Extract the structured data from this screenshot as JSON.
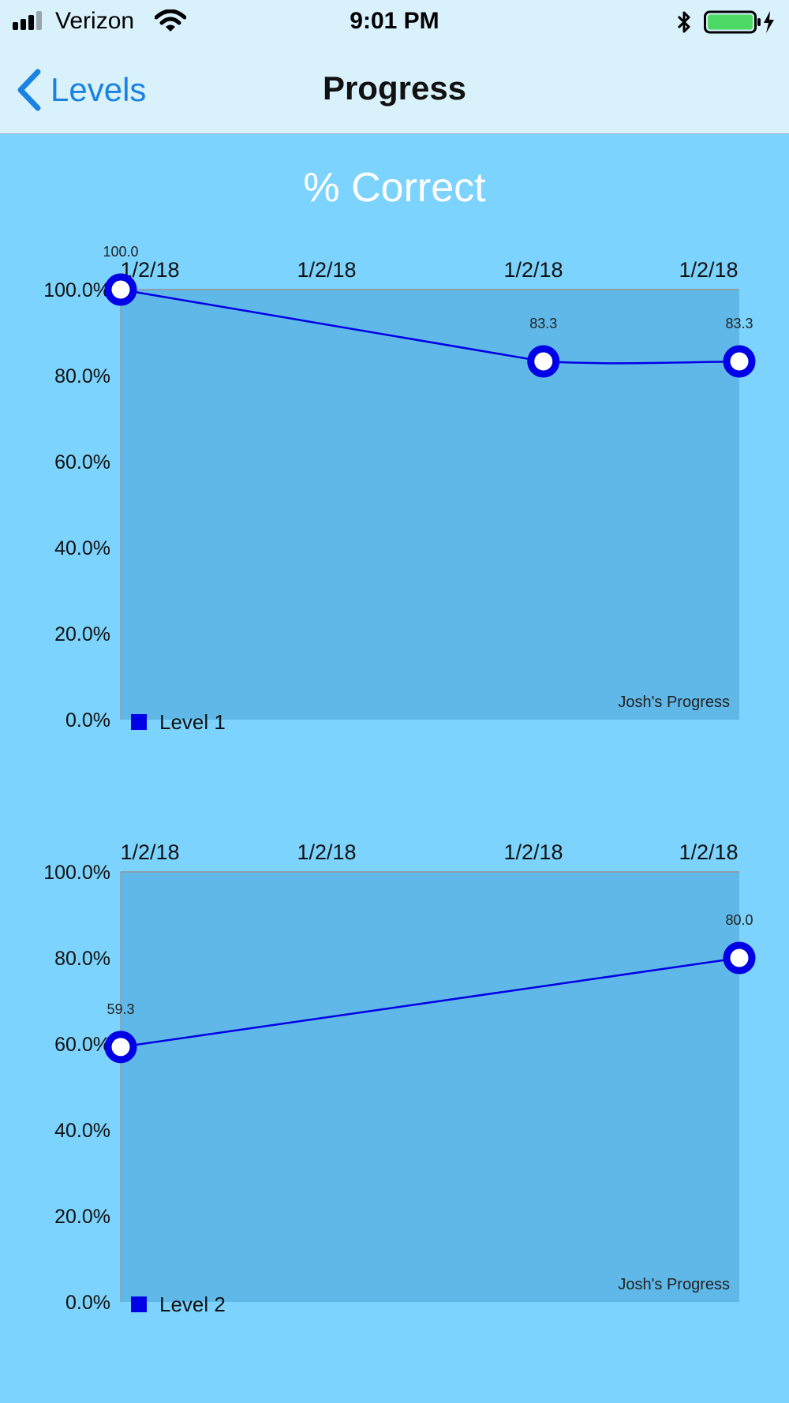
{
  "status_bar": {
    "carrier": "Verizon",
    "time": "9:01 PM",
    "icons": [
      "signal-icon",
      "wifi-icon",
      "bluetooth-icon",
      "battery-icon",
      "charging-icon"
    ]
  },
  "nav": {
    "back_label": "Levels",
    "title": "Progress"
  },
  "page": {
    "title": "% Correct"
  },
  "colors": {
    "background": "#7cd3fd",
    "plot_area": "#5fb8e8",
    "series": "#0000e6",
    "nav_bg": "#d9f1fb",
    "back_link": "#1a82e0"
  },
  "chart_data": [
    {
      "type": "line",
      "x_tick_labels": [
        "1/2/18",
        "1/2/18",
        "1/2/18",
        "1/2/18"
      ],
      "y_tick_labels": [
        "100.0%",
        "80.0%",
        "60.0%",
        "40.0%",
        "20.0%",
        "0.0%"
      ],
      "ylim": [
        0,
        100
      ],
      "xlim": [
        0,
        3
      ],
      "series": [
        {
          "name": "Level 1",
          "x": [
            0,
            2.05,
            3
          ],
          "values": [
            100,
            83.3,
            83.3
          ],
          "data_labels": [
            "100.0",
            "83.3",
            "83.3"
          ]
        }
      ],
      "description_text": "Josh's Progress",
      "legend_position": "bottom-left",
      "grid": false
    },
    {
      "type": "line",
      "x_tick_labels": [
        "1/2/18",
        "1/2/18",
        "1/2/18",
        "1/2/18"
      ],
      "y_tick_labels": [
        "100.0%",
        "80.0%",
        "60.0%",
        "40.0%",
        "20.0%",
        "0.0%"
      ],
      "ylim": [
        0,
        100
      ],
      "xlim": [
        0,
        3
      ],
      "series": [
        {
          "name": "Level 2",
          "x": [
            0,
            3
          ],
          "values": [
            59.3,
            80.0
          ],
          "data_labels": [
            "59.3",
            "80.0"
          ]
        }
      ],
      "description_text": "Josh's Progress",
      "legend_position": "bottom-left",
      "grid": false
    }
  ]
}
